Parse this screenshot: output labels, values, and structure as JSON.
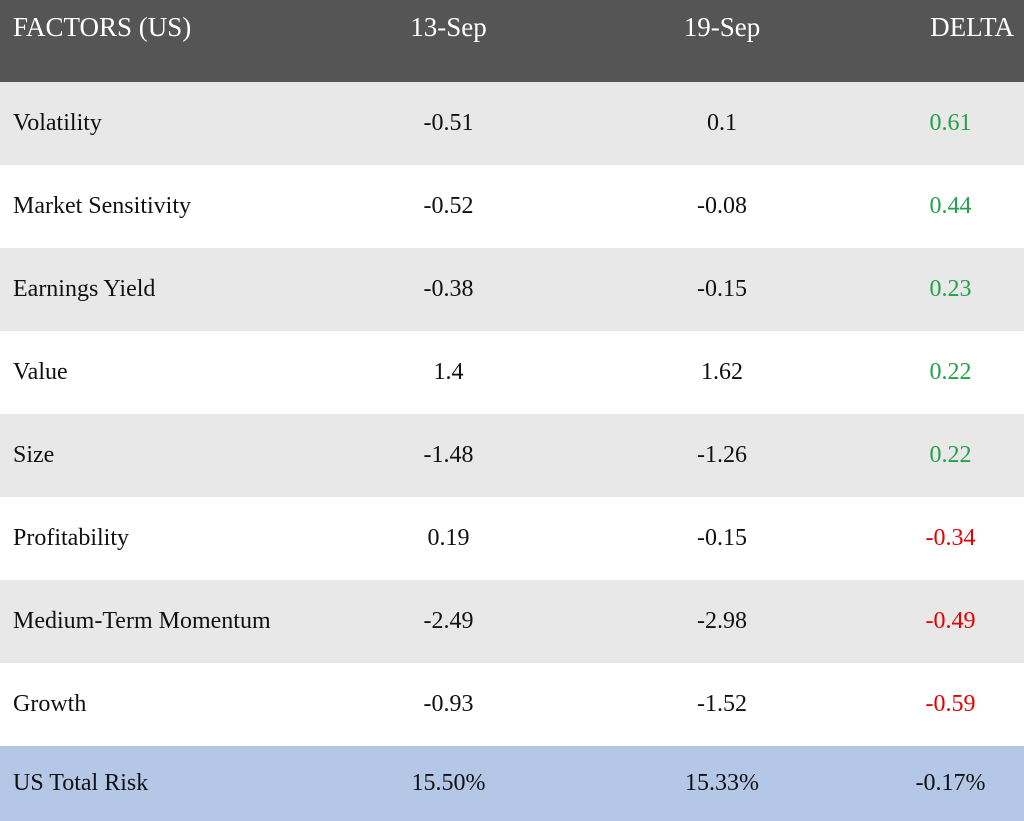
{
  "header": {
    "factor": "FACTORS (US)",
    "date1": "13-Sep",
    "date2": "19-Sep",
    "delta": "DELTA"
  },
  "rows": [
    {
      "factor": "Volatility",
      "v1": "-0.51",
      "v2": "0.1",
      "delta": "0.61",
      "sign": "pos"
    },
    {
      "factor": "Market Sensitivity",
      "v1": "-0.52",
      "v2": "-0.08",
      "delta": "0.44",
      "sign": "pos"
    },
    {
      "factor": "Earnings Yield",
      "v1": "-0.38",
      "v2": "-0.15",
      "delta": "0.23",
      "sign": "pos"
    },
    {
      "factor": "Value",
      "v1": "1.4",
      "v2": "1.62",
      "delta": "0.22",
      "sign": "pos"
    },
    {
      "factor": "Size",
      "v1": "-1.48",
      "v2": "-1.26",
      "delta": "0.22",
      "sign": "pos"
    },
    {
      "factor": "Profitability",
      "v1": "0.19",
      "v2": "-0.15",
      "delta": "-0.34",
      "sign": "neg"
    },
    {
      "factor": "Medium-Term Momentum",
      "v1": "-2.49",
      "v2": "-2.98",
      "delta": "-0.49",
      "sign": "neg"
    },
    {
      "factor": "Growth",
      "v1": "-0.93",
      "v2": "-1.52",
      "delta": "-0.59",
      "sign": "neg"
    }
  ],
  "total": {
    "label": "US Total Risk",
    "v1": "15.50%",
    "v2": "15.33%",
    "delta": "-0.17%"
  },
  "colors": {
    "header_bg": "#555555",
    "row_shade": "#e8e8e8",
    "total_bg": "#b4c7e7",
    "positive": "#22a24a",
    "negative": "#e60000"
  }
}
